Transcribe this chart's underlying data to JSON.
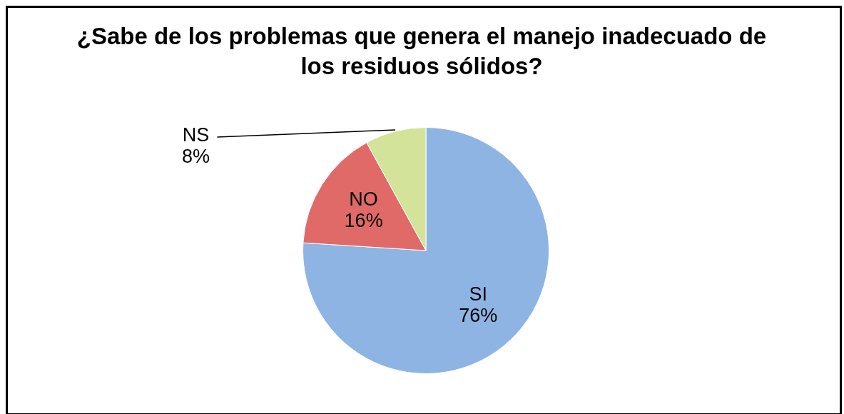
{
  "chart_data": {
    "type": "pie",
    "title": "¿Sabe de los problemas que genera el manejo inadecuado de los residuos sólidos?",
    "categories": [
      "SI",
      "NO",
      "NS"
    ],
    "values": [
      76,
      16,
      8
    ],
    "value_labels": [
      "76%",
      "16%",
      "8%"
    ],
    "colors": [
      "#8eb4e3",
      "#e06a68",
      "#d4e39a"
    ]
  }
}
